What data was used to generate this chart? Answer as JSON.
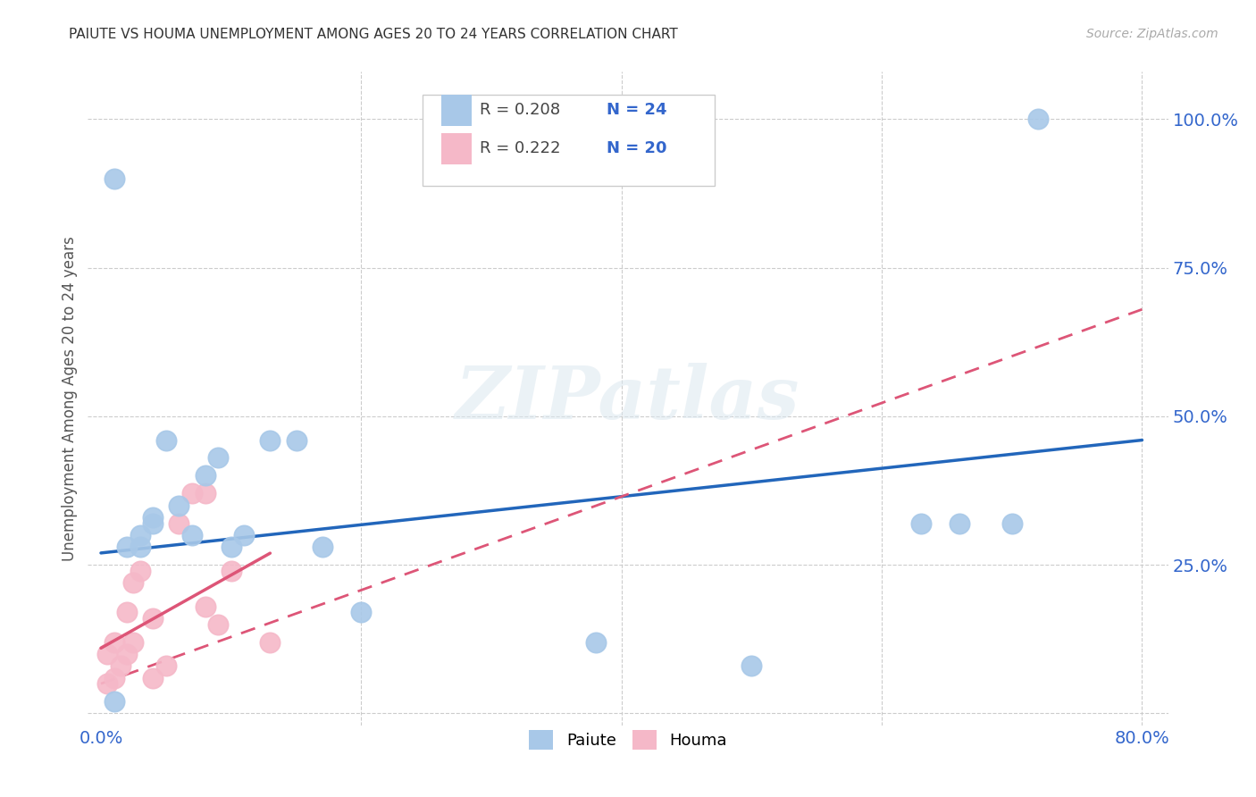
{
  "title": "PAIUTE VS HOUMA UNEMPLOYMENT AMONG AGES 20 TO 24 YEARS CORRELATION CHART",
  "source": "Source: ZipAtlas.com",
  "ylabel": "Unemployment Among Ages 20 to 24 years",
  "xlim": [
    -0.01,
    0.82
  ],
  "ylim": [
    -0.02,
    1.08
  ],
  "xtick_positions": [
    0.0,
    0.2,
    0.4,
    0.6,
    0.8
  ],
  "xticklabels": [
    "0.0%",
    "",
    "",
    "",
    "80.0%"
  ],
  "ytick_positions": [
    0.0,
    0.25,
    0.5,
    0.75,
    1.0
  ],
  "yticklabels": [
    "",
    "25.0%",
    "50.0%",
    "75.0%",
    "100.0%"
  ],
  "paiute_color": "#a8c8e8",
  "houma_color": "#f5b8c8",
  "paiute_line_color": "#2266bb",
  "houma_line_color": "#dd5577",
  "paiute_R": "0.208",
  "paiute_N": "24",
  "houma_R": "0.222",
  "houma_N": "20",
  "watermark": "ZIPatlas",
  "paiute_x": [
    0.01,
    0.01,
    0.02,
    0.03,
    0.03,
    0.04,
    0.04,
    0.05,
    0.06,
    0.07,
    0.08,
    0.09,
    0.1,
    0.11,
    0.13,
    0.15,
    0.17,
    0.2,
    0.38,
    0.5,
    0.63,
    0.66,
    0.7,
    0.72
  ],
  "paiute_y": [
    0.9,
    0.02,
    0.28,
    0.3,
    0.28,
    0.32,
    0.33,
    0.46,
    0.35,
    0.3,
    0.4,
    0.43,
    0.28,
    0.3,
    0.46,
    0.46,
    0.28,
    0.17,
    0.12,
    0.08,
    0.32,
    0.32,
    0.32,
    1.0
  ],
  "houma_x": [
    0.005,
    0.005,
    0.01,
    0.01,
    0.015,
    0.02,
    0.02,
    0.025,
    0.025,
    0.03,
    0.04,
    0.04,
    0.05,
    0.06,
    0.07,
    0.08,
    0.08,
    0.09,
    0.1,
    0.13
  ],
  "houma_y": [
    0.05,
    0.1,
    0.06,
    0.12,
    0.08,
    0.1,
    0.17,
    0.12,
    0.22,
    0.24,
    0.06,
    0.16,
    0.08,
    0.32,
    0.37,
    0.18,
    0.37,
    0.15,
    0.24,
    0.12
  ],
  "paiute_line_x": [
    0.0,
    0.8
  ],
  "paiute_line_y": [
    0.27,
    0.46
  ],
  "houma_line_x": [
    0.0,
    0.8
  ],
  "houma_line_y": [
    0.05,
    0.68
  ],
  "background_color": "#ffffff",
  "grid_color": "#cccccc"
}
